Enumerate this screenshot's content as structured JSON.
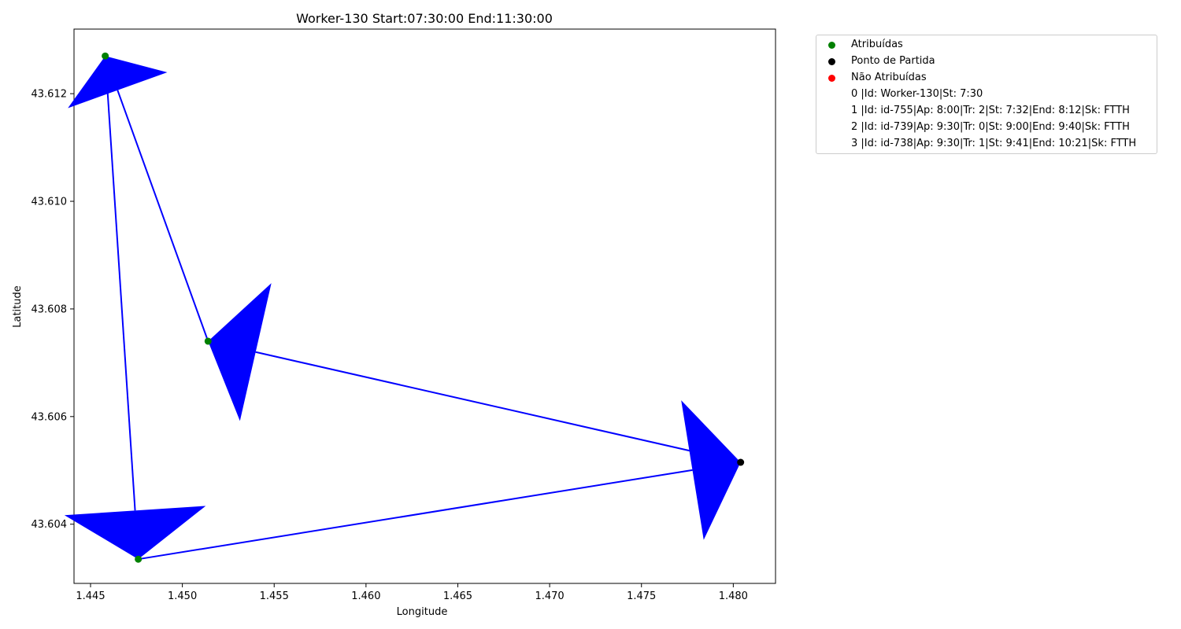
{
  "chart_data": {
    "type": "scatter",
    "title": "Worker-130 Start:07:30:00 End:11:30:00",
    "xlabel": "Longitude",
    "ylabel": "Latitude",
    "xlim": [
      1.4441,
      1.4823
    ],
    "ylim": [
      43.6029,
      43.6132
    ],
    "xticks": [
      "1.445",
      "1.450",
      "1.455",
      "1.460",
      "1.465",
      "1.470",
      "1.475",
      "1.480"
    ],
    "yticks": [
      "43.604",
      "43.606",
      "43.608",
      "43.610",
      "43.612"
    ],
    "grid": false,
    "legend_placement": "outside top-right",
    "series": [
      {
        "name": "Atribuídas",
        "color": "#008000",
        "points": [
          [
            1.4458,
            43.6127
          ],
          [
            1.4514,
            43.6074
          ],
          [
            1.4476,
            43.60335
          ]
        ]
      },
      {
        "name": "Ponto de Partida",
        "color": "#000000",
        "points": [
          [
            1.4804,
            43.60515
          ]
        ]
      },
      {
        "name": "Não Atribuídas",
        "color": "#ff0000",
        "points": []
      }
    ],
    "route": {
      "color": "#0000ff",
      "path": [
        [
          1.4804,
          43.60515
        ],
        [
          1.4514,
          43.6074
        ],
        [
          1.4458,
          43.6127
        ],
        [
          1.4476,
          43.60335
        ],
        [
          1.4804,
          43.60515
        ]
      ]
    },
    "legend_notes": [
      "0 |Id: Worker-130|St: 7:30",
      "1 |Id: id-755|Ap: 8:00|Tr: 2|St: 7:32|End: 8:12|Sk: FTTH",
      "2 |Id: id-739|Ap: 9:30|Tr: 0|St: 9:00|End: 9:40|Sk: FTTH",
      "3 |Id: id-738|Ap: 9:30|Tr: 1|St: 9:41|End: 10:21|Sk: FTTH"
    ]
  }
}
